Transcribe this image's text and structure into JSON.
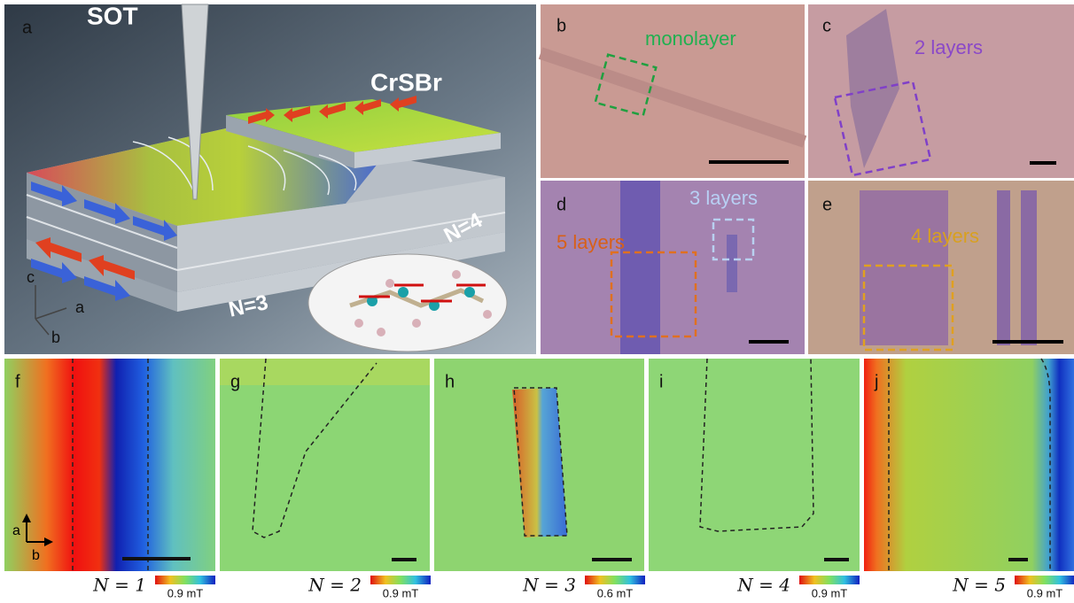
{
  "panel_a": {
    "label": "a",
    "tip": "SOT",
    "material": "CrSBr",
    "n_upper": "N=4",
    "n_lower": "N=3",
    "axes": [
      "c",
      "a",
      "b"
    ]
  },
  "optical_panels": [
    {
      "label": "b",
      "annotations": [
        "monolayer"
      ]
    },
    {
      "label": "c",
      "annotations": [
        "2 layers"
      ]
    },
    {
      "label": "d",
      "annotations": [
        "3 layers",
        "5 layers"
      ]
    },
    {
      "label": "e",
      "annotations": [
        "4 layers"
      ]
    }
  ],
  "maps": [
    {
      "label": "f",
      "caption": "N = 1",
      "scale": "0.9 mT"
    },
    {
      "label": "g",
      "caption": "N = 2",
      "scale": "0.9 mT"
    },
    {
      "label": "h",
      "caption": "N = 3",
      "scale": "0.6 mT"
    },
    {
      "label": "i",
      "caption": "N = 4",
      "scale": "0.9 mT"
    },
    {
      "label": "j",
      "caption": "N = 5",
      "scale": "0.9 mT"
    }
  ],
  "map_axes": [
    "a",
    "b"
  ]
}
